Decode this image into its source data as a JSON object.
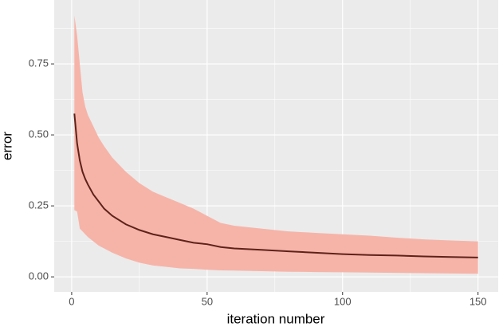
{
  "chart_data": {
    "type": "ribbon-line",
    "x_label": "iteration number",
    "y_label": "error",
    "x": [
      1,
      2,
      3,
      4,
      5,
      6,
      8,
      10,
      12,
      15,
      20,
      25,
      30,
      35,
      40,
      45,
      50,
      55,
      60,
      70,
      80,
      90,
      100,
      110,
      120,
      130,
      140,
      150
    ],
    "values": [
      0.575,
      0.47,
      0.41,
      0.37,
      0.345,
      0.325,
      0.29,
      0.265,
      0.24,
      0.215,
      0.185,
      0.165,
      0.15,
      0.14,
      0.13,
      0.12,
      0.115,
      0.105,
      0.1,
      0.095,
      0.09,
      0.085,
      0.08,
      0.077,
      0.075,
      0.072,
      0.07,
      0.068
    ],
    "upper": [
      0.92,
      0.85,
      0.75,
      0.65,
      0.6,
      0.57,
      0.53,
      0.49,
      0.46,
      0.42,
      0.37,
      0.33,
      0.3,
      0.28,
      0.26,
      0.24,
      0.215,
      0.19,
      0.18,
      0.17,
      0.16,
      0.155,
      0.15,
      0.145,
      0.138,
      0.132,
      0.128,
      0.125
    ],
    "lower": [
      0.235,
      0.23,
      0.17,
      0.16,
      0.15,
      0.14,
      0.125,
      0.11,
      0.1,
      0.085,
      0.065,
      0.05,
      0.04,
      0.035,
      0.03,
      0.028,
      0.025,
      0.023,
      0.022,
      0.02,
      0.018,
      0.017,
      0.016,
      0.015,
      0.014,
      0.013,
      0.012,
      0.011
    ],
    "line_color": "#5e2219",
    "ribbon_color": "#f6b4a9",
    "xlim": [
      -6.45,
      157.45
    ],
    "ylim": [
      -0.053,
      0.975
    ],
    "xticks": [
      0,
      50,
      100,
      150
    ],
    "yticks": [
      {
        "value": 0,
        "label": "0.00"
      },
      {
        "value": 0.25,
        "label": "0.25"
      },
      {
        "value": 0.5,
        "label": "0.50"
      },
      {
        "value": 0.75,
        "label": "0.75"
      }
    ],
    "x_minor_ticks": [
      25,
      75,
      125
    ],
    "y_minor_ticks": [
      0.125,
      0.375,
      0.625,
      0.875
    ],
    "grid": true
  }
}
